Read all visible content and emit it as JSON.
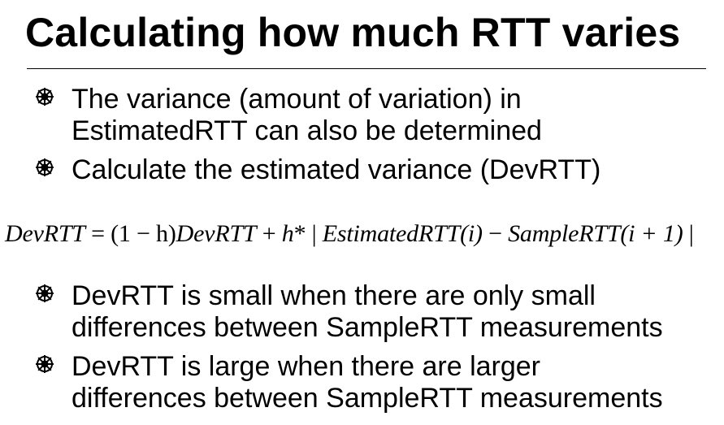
{
  "slide": {
    "title": "Calculating how much RTT varies",
    "bullets_top": [
      {
        "line1": "The variance (amount of variation) in",
        "line2": "EstimatedRTT can also be determined"
      },
      {
        "line1": "Calculate the estimated variance (DevRTT)",
        "line2": ""
      }
    ],
    "formula": {
      "lhs": "DevRTT",
      "eq": " = ",
      "coef": "(1 − h)",
      "term1": "DevRTT",
      "plus": " + ",
      "h": "h",
      "star": "* | ",
      "est": "EstimatedRTT",
      "arg1": "(i)",
      "minus": " − ",
      "sample": "SampleRTT",
      "arg2": "(i + 1)",
      "close": " |"
    },
    "bullets_bottom": [
      {
        "line1": "DevRTT is small when there are only small",
        "line2": "differences between SampleRTT measurements"
      },
      {
        "line1": "DevRTT is large when there are larger",
        "line2": "differences between SampleRTT measurements"
      }
    ]
  },
  "icons": {
    "bullet": "ornament-bullet-icon"
  }
}
